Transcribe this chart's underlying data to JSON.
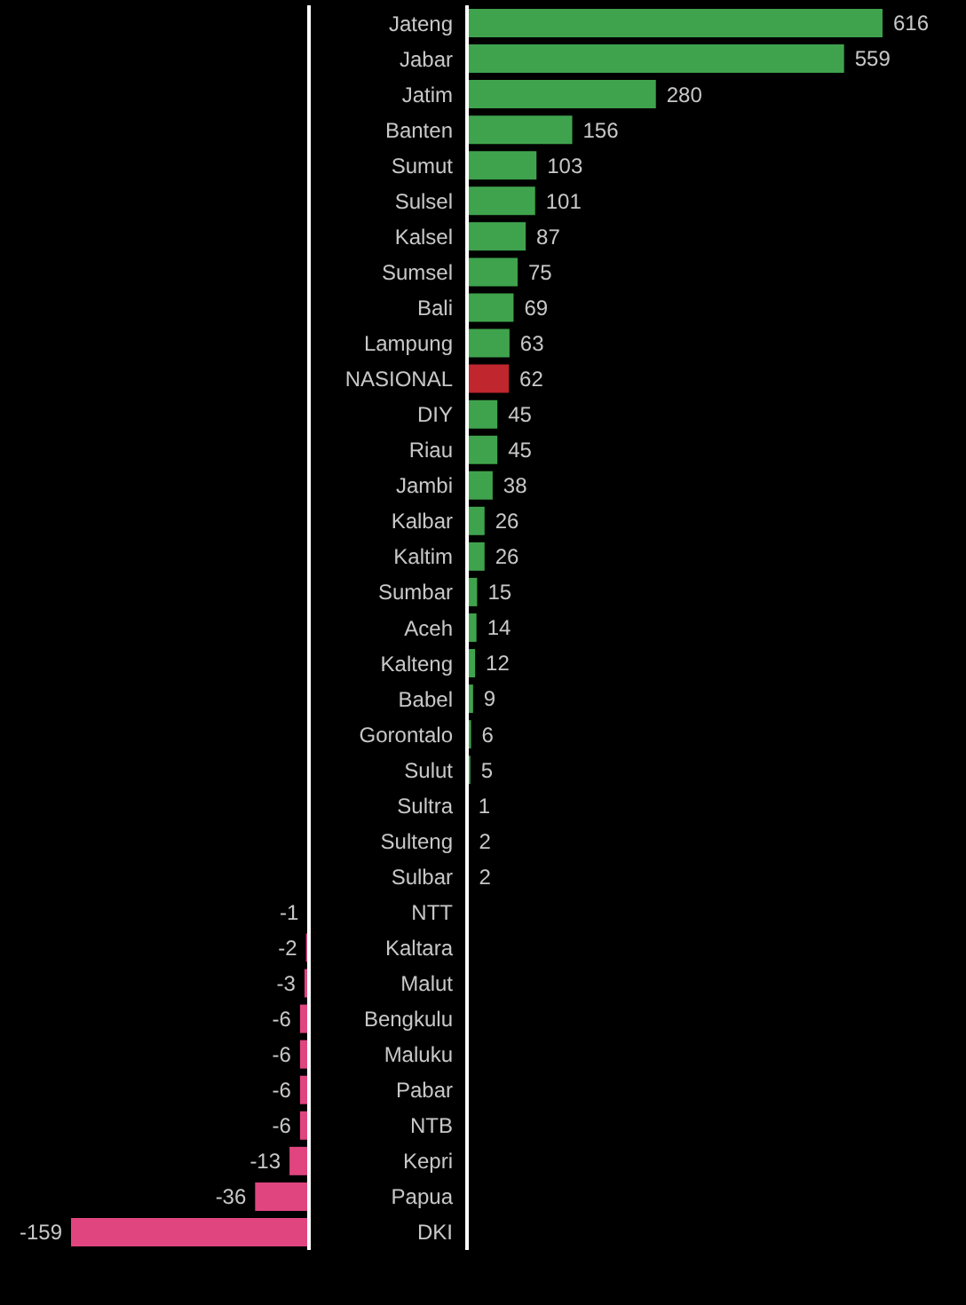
{
  "chart_data": [
    {
      "type": "bar",
      "orientation": "horizontal",
      "data_labels": true,
      "tick_labels": "y",
      "categories": [
        null,
        null,
        null,
        null,
        null,
        null,
        null,
        null,
        null,
        null,
        null,
        null,
        null,
        null,
        null,
        null,
        null,
        null,
        null,
        null,
        null,
        null,
        null,
        null,
        null,
        "NTT",
        "Kaltara",
        "Malut",
        "Bengkulu",
        "Maluku",
        "Pabar",
        "NTB",
        "Kepri",
        "Papua",
        "DKI"
      ],
      "values": [
        null,
        null,
        null,
        null,
        null,
        null,
        null,
        null,
        null,
        null,
        null,
        null,
        null,
        null,
        null,
        null,
        null,
        null,
        null,
        null,
        null,
        null,
        null,
        null,
        null,
        -1,
        -2,
        -3,
        -6,
        -6,
        -6,
        -6,
        -13,
        -36,
        -159
      ],
      "color": "#e0457f"
    },
    {
      "type": "bar",
      "orientation": "horizontal",
      "data_labels": true,
      "tick_labels": "y",
      "categories": [
        "Jateng",
        "Jabar",
        "Jatim",
        "Banten",
        "Sumut",
        "Sulsel",
        "Kalsel",
        "Sumsel",
        "Bali",
        "Lampung",
        "NASIONAL",
        "DIY",
        "Riau",
        "Jambi",
        "Kalbar",
        "Kaltim",
        "Sumbar",
        "Aceh",
        "Kalteng",
        "Babel",
        "Gorontalo",
        "Sulut",
        "Sultra",
        "Sulteng",
        "Sulbar",
        null,
        null,
        null,
        null,
        null,
        null,
        null,
        null,
        null,
        null
      ],
      "values": [
        616,
        559,
        280,
        156,
        103,
        101,
        87,
        75,
        69,
        63,
        62,
        45,
        45,
        38,
        26,
        26,
        15,
        14,
        12,
        9,
        6,
        5,
        1,
        2,
        2,
        null,
        null,
        null,
        null,
        null,
        null,
        null,
        null,
        null,
        null
      ],
      "colors": [
        "#3fa34d",
        "#3fa34d",
        "#3fa34d",
        "#3fa34d",
        "#3fa34d",
        "#3fa34d",
        "#3fa34d",
        "#3fa34d",
        "#3fa34d",
        "#3fa34d",
        "#c0262d",
        "#3fa34d",
        "#3fa34d",
        "#3fa34d",
        "#3fa34d",
        "#3fa34d",
        "#3fa34d",
        "#3fa34d",
        "#3fa34d",
        "#3fa34d",
        "#3fa34d",
        "#3fa34d",
        "#3fa34d",
        "#3fa34d",
        "#3fa34d",
        null,
        null,
        null,
        null,
        null,
        null,
        null,
        null,
        null,
        null
      ]
    }
  ]
}
